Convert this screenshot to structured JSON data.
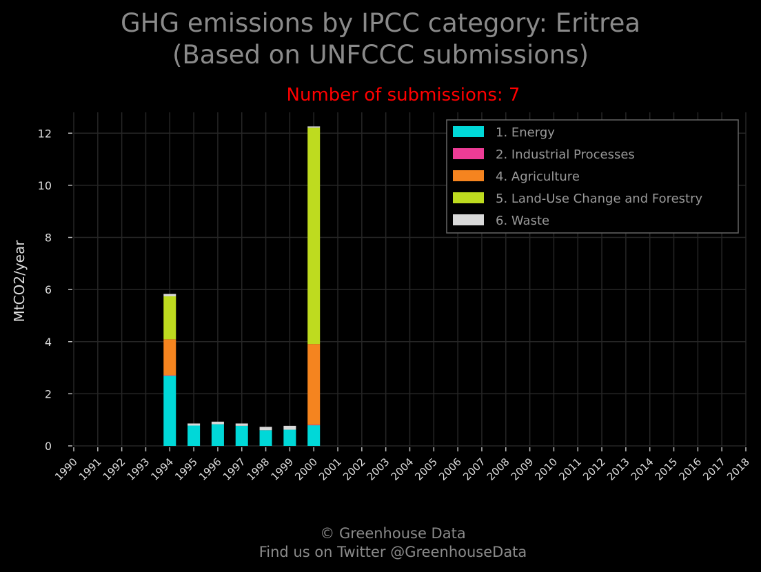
{
  "title_line1": "GHG emissions by IPCC category: Eritrea",
  "title_line2": "(Based on UNFCCC submissions)",
  "subtitle": "Number of submissions: 7",
  "footer_line1": "© Greenhouse Data",
  "footer_line2": "Find us on Twitter @GreenhouseData",
  "colors": {
    "background": "#000000",
    "title": "#8a8a8a",
    "subtitle": "#ff0000",
    "grid": "#262626",
    "axis_text": "#dddddd",
    "legend_border": "#666666"
  },
  "chart_data": {
    "type": "bar",
    "stacked": true,
    "ylabel": "MtCO2/year",
    "ylim": [
      0,
      12.8
    ],
    "yticks": [
      0,
      2,
      4,
      6,
      8,
      10,
      12
    ],
    "grid": true,
    "legend_position": "top-right",
    "categories": [
      "1990",
      "1991",
      "1992",
      "1993",
      "1994",
      "1995",
      "1996",
      "1997",
      "1998",
      "1999",
      "2000",
      "2001",
      "2002",
      "2003",
      "2004",
      "2005",
      "2006",
      "2007",
      "2008",
      "2009",
      "2010",
      "2011",
      "2012",
      "2013",
      "2014",
      "2015",
      "2016",
      "2017",
      "2018"
    ],
    "series": [
      {
        "name": "1. Energy",
        "color": "#00d8d8",
        "values": [
          0,
          0,
          0,
          0,
          2.7,
          0.78,
          0.83,
          0.77,
          0.6,
          0.62,
          0.8,
          0,
          0,
          0,
          0,
          0,
          0,
          0,
          0,
          0,
          0,
          0,
          0,
          0,
          0,
          0,
          0,
          0,
          0
        ]
      },
      {
        "name": "2. Industrial Processes",
        "color": "#ee3c96",
        "values": [
          0,
          0,
          0,
          0,
          0.01,
          0,
          0,
          0,
          0,
          0,
          0.01,
          0,
          0,
          0,
          0,
          0,
          0,
          0,
          0,
          0,
          0,
          0,
          0,
          0,
          0,
          0,
          0,
          0,
          0
        ]
      },
      {
        "name": "4. Agriculture",
        "color": "#f5841f",
        "values": [
          0,
          0,
          0,
          0,
          1.38,
          0,
          0,
          0,
          0,
          0,
          3.1,
          0,
          0,
          0,
          0,
          0,
          0,
          0,
          0,
          0,
          0,
          0,
          0,
          0,
          0,
          0,
          0,
          0,
          0
        ]
      },
      {
        "name": "5. Land-Use Change and Forestry",
        "color": "#bedb1f",
        "values": [
          0,
          0,
          0,
          0,
          1.65,
          0,
          0,
          0,
          0,
          0,
          8.3,
          0,
          0,
          0,
          0,
          0,
          0,
          0,
          0,
          0,
          0,
          0,
          0,
          0,
          0,
          0,
          0,
          0,
          0
        ]
      },
      {
        "name": "6. Waste",
        "color": "#d9d9d9",
        "values": [
          0,
          0,
          0,
          0,
          0.09,
          0.08,
          0.1,
          0.09,
          0.13,
          0.15,
          0.05,
          0,
          0,
          0,
          0,
          0,
          0,
          0,
          0,
          0,
          0,
          0,
          0,
          0,
          0,
          0,
          0,
          0,
          0
        ]
      }
    ]
  }
}
